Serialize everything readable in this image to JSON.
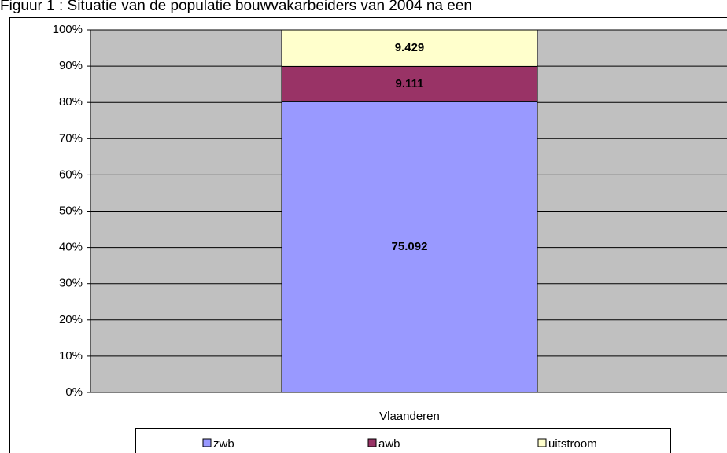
{
  "chart_data": {
    "type": "bar",
    "stacked": "percent",
    "title": "Figuur 1 : Situatie van de populatie bouwvakarbeiders van 2004 na een",
    "categories": [
      "Vlaanderen"
    ],
    "series": [
      {
        "name": "zwb",
        "color": "#9999ff",
        "values": [
          75092
        ],
        "value_labels": [
          "75.092"
        ]
      },
      {
        "name": "awb",
        "color": "#993366",
        "values": [
          9111
        ],
        "value_labels": [
          "9.111"
        ]
      },
      {
        "name": "uitstroom",
        "color": "#ffffcc",
        "values": [
          9429
        ],
        "value_labels": [
          "9.429"
        ]
      }
    ],
    "ylim": [
      0,
      100
    ],
    "yticks": [
      {
        "value": 0,
        "label": "0%"
      },
      {
        "value": 10,
        "label": "10%"
      },
      {
        "value": 20,
        "label": "20%"
      },
      {
        "value": 30,
        "label": "30%"
      },
      {
        "value": 40,
        "label": "40%"
      },
      {
        "value": 50,
        "label": "50%"
      },
      {
        "value": 60,
        "label": "60%"
      },
      {
        "value": 70,
        "label": "70%"
      },
      {
        "value": 80,
        "label": "80%"
      },
      {
        "value": 90,
        "label": "90%"
      },
      {
        "value": 100,
        "label": "100%"
      }
    ],
    "grid": true,
    "plot_background": "#c0c0c0"
  }
}
